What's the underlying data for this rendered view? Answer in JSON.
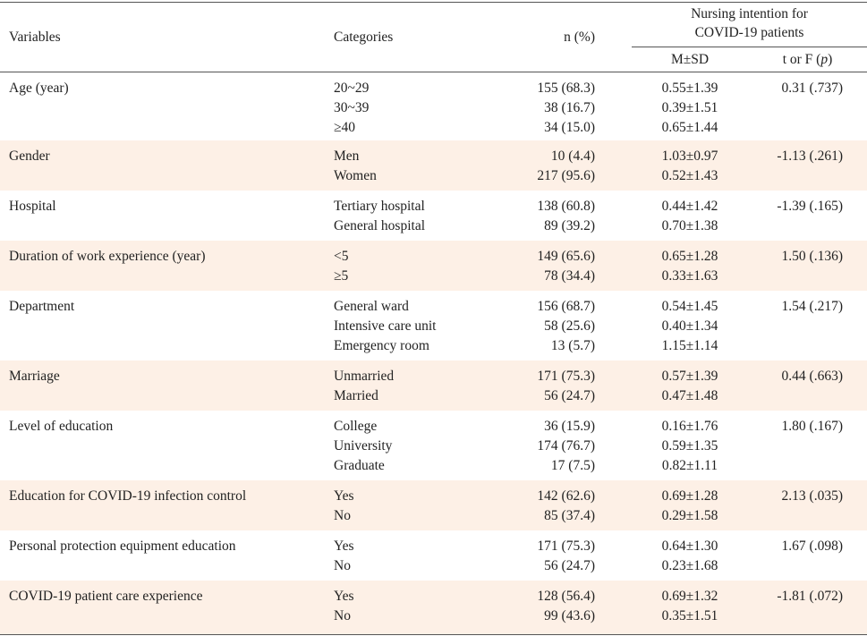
{
  "header": {
    "variables": "Variables",
    "categories": "Categories",
    "n": "n (%)",
    "group_line1": "Nursing intention for",
    "group_line2": "COVID-19 patients",
    "msd": "M±SD",
    "tf_prefix": "t or F (",
    "tf_p": "p",
    "tf_suffix": ")"
  },
  "rows": [
    {
      "variable": "Age (year)",
      "categories": [
        "20~29",
        "30~39",
        "≥40"
      ],
      "n": [
        "155 (68.3)",
        "38 (16.7)",
        "34 (15.0)"
      ],
      "msd": [
        "0.55±1.39",
        "0.39±1.51",
        "0.65±1.44"
      ],
      "tf": "0.31 (.737)"
    },
    {
      "variable": "Gender",
      "categories": [
        "Men",
        "Women"
      ],
      "n": [
        "10 (4.4)",
        "217 (95.6)"
      ],
      "msd": [
        "1.03±0.97",
        "0.52±1.43"
      ],
      "tf": "-1.13 (.261)"
    },
    {
      "variable": "Hospital",
      "categories": [
        "Tertiary hospital",
        "General hospital"
      ],
      "n": [
        "138 (60.8)",
        "89 (39.2)"
      ],
      "msd": [
        "0.44±1.42",
        "0.70±1.38"
      ],
      "tf": "-1.39 (.165)"
    },
    {
      "variable": "Duration of work experience (year)",
      "categories": [
        "<5",
        "≥5"
      ],
      "n": [
        "149 (65.6)",
        "78 (34.4)"
      ],
      "msd": [
        "0.65±1.28",
        "0.33±1.63"
      ],
      "tf": "1.50 (.136)"
    },
    {
      "variable": "Department",
      "categories": [
        "General ward",
        "Intensive care unit",
        "Emergency room"
      ],
      "n": [
        "156 (68.7)",
        "58 (25.6)",
        "13 (5.7)"
      ],
      "msd": [
        "0.54±1.45",
        "0.40±1.34",
        "1.15±1.14"
      ],
      "tf": "1.54 (.217)"
    },
    {
      "variable": "Marriage",
      "categories": [
        "Unmarried",
        "Married"
      ],
      "n": [
        "171 (75.3)",
        "56 (24.7)"
      ],
      "msd": [
        "0.57±1.39",
        "0.47±1.48"
      ],
      "tf": "0.44 (.663)"
    },
    {
      "variable": "Level of education",
      "categories": [
        "College",
        "University",
        "Graduate"
      ],
      "n": [
        "36 (15.9)",
        "174 (76.7)",
        "17 (7.5)"
      ],
      "msd": [
        "0.16±1.76",
        "0.59±1.35",
        "0.82±1.11"
      ],
      "tf": "1.80 (.167)"
    },
    {
      "variable": "Education for COVID-19 infection control",
      "categories": [
        "Yes",
        "No"
      ],
      "n": [
        "142 (62.6)",
        "85 (37.4)"
      ],
      "msd": [
        "0.69±1.28",
        "0.29±1.58"
      ],
      "tf": "2.13 (.035)"
    },
    {
      "variable": "Personal protection equipment education",
      "categories": [
        "Yes",
        "No"
      ],
      "n": [
        "171 (75.3)",
        "56 (24.7)"
      ],
      "msd": [
        "0.64±1.30",
        "0.23±1.68"
      ],
      "tf": "1.67 (.098)"
    },
    {
      "variable": "COVID-19 patient care experience",
      "categories": [
        "Yes",
        "No"
      ],
      "n": [
        "128 (56.4)",
        "99 (43.6)"
      ],
      "msd": [
        "0.69±1.32",
        "0.35±1.51"
      ],
      "tf": "-1.81 (.072)"
    }
  ]
}
